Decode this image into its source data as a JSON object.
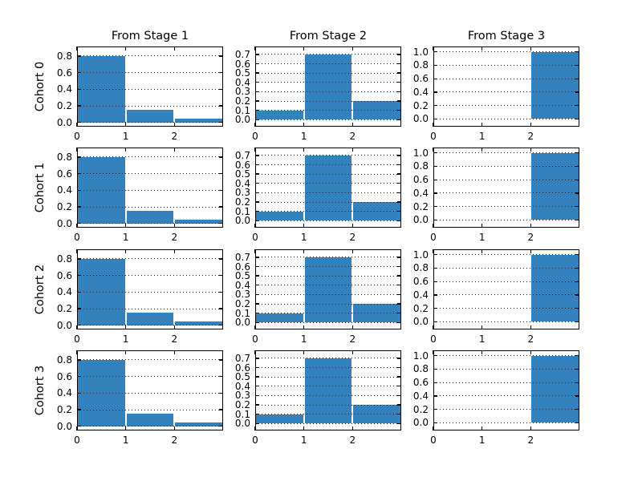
{
  "figure": {
    "background": "#ffffff",
    "frame_color": "#000000",
    "text_color": "#000000"
  },
  "chart_data": {
    "type": "bar",
    "subtype": "histogram-grid",
    "grid": {
      "rows": 4,
      "cols": 3
    },
    "row_labels": [
      "Cohort 0",
      "Cohort 1",
      "Cohort 2",
      "Cohort 3"
    ],
    "col_titles": [
      "From Stage 1",
      "From Stage 2",
      "From Stage 3"
    ],
    "bar_color": "#3482bd",
    "grid_on": true,
    "gridline_style": "dotted",
    "legend": "none",
    "x": {
      "bin_edges": [
        0,
        1,
        2,
        3
      ],
      "xlim": [
        0,
        3
      ],
      "tick_values": [
        0,
        1,
        2
      ],
      "tick_labels": [
        "0",
        "1",
        "2"
      ]
    },
    "columns": [
      {
        "title": "From Stage 1",
        "ytick_labels": [
          "0.0",
          "0.2",
          "0.4",
          "0.6",
          "0.8"
        ],
        "ytick_values": [
          0.0,
          0.2,
          0.4,
          0.6,
          0.8
        ],
        "ylim": [
          -0.05,
          0.915
        ]
      },
      {
        "title": "From Stage 2",
        "ytick_labels": [
          "0.0",
          "0.1",
          "0.2",
          "0.3",
          "0.4",
          "0.5",
          "0.6",
          "0.7"
        ],
        "ytick_values": [
          0.0,
          0.1,
          0.2,
          0.3,
          0.4,
          0.5,
          0.6,
          0.7
        ],
        "ylim": [
          -0.075,
          0.785
        ]
      },
      {
        "title": "From Stage 3",
        "ytick_labels": [
          "0.0",
          "0.2",
          "0.4",
          "0.6",
          "0.8",
          "1.0"
        ],
        "ytick_values": [
          0.0,
          0.2,
          0.4,
          0.6,
          0.8,
          1.0
        ],
        "ylim": [
          -0.115,
          1.08
        ]
      }
    ],
    "series": [
      {
        "name": "Cohort 0",
        "values": [
          [
            0.8,
            0.15,
            0.05
          ],
          [
            0.1,
            0.7,
            0.2
          ],
          [
            0.0,
            0.0,
            1.0
          ]
        ]
      },
      {
        "name": "Cohort 1",
        "values": [
          [
            0.8,
            0.15,
            0.05
          ],
          [
            0.1,
            0.7,
            0.2
          ],
          [
            0.0,
            0.0,
            1.0
          ]
        ]
      },
      {
        "name": "Cohort 2",
        "values": [
          [
            0.8,
            0.15,
            0.05
          ],
          [
            0.1,
            0.7,
            0.2
          ],
          [
            0.0,
            0.0,
            1.0
          ]
        ]
      },
      {
        "name": "Cohort 3",
        "values": [
          [
            0.8,
            0.15,
            0.05
          ],
          [
            0.1,
            0.7,
            0.2
          ],
          [
            0.0,
            0.0,
            1.0
          ]
        ]
      }
    ]
  }
}
